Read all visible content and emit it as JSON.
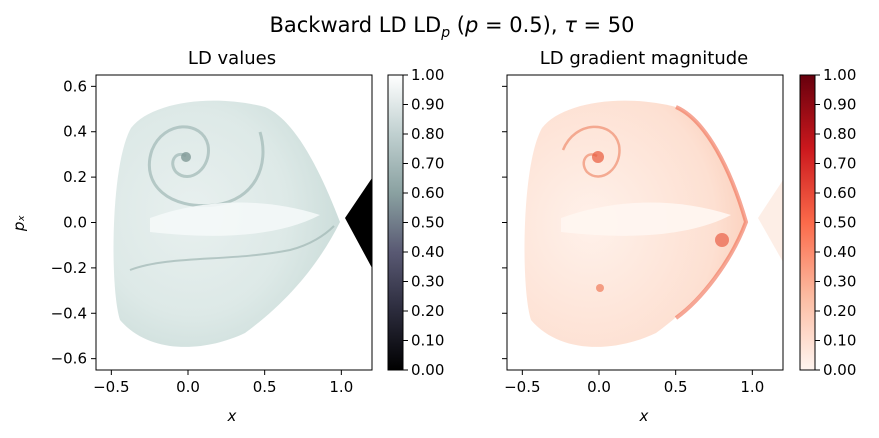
{
  "figure": {
    "suptitle": "Backward LD LDₚ (p = 0.5), τ = 50"
  },
  "chart_data": [
    {
      "type": "heatmap",
      "title": "LD values",
      "xlabel": "x",
      "ylabel": "pₓ",
      "xlim": [
        -0.6,
        1.2
      ],
      "ylim": [
        -0.65,
        0.65
      ],
      "xticks": [
        "−0.5",
        "0.0",
        "0.5",
        "1.0"
      ],
      "xtick_values": [
        -0.5,
        0.0,
        0.5,
        1.0
      ],
      "yticks": [
        "0.6",
        "0.4",
        "0.2",
        "0.0",
        "−0.2",
        "−0.4",
        "−0.6"
      ],
      "ytick_values": [
        0.6,
        0.4,
        0.2,
        0.0,
        -0.2,
        -0.4,
        -0.6
      ],
      "colormap": "bone",
      "colorbar": {
        "range": [
          0.0,
          1.0
        ],
        "ticks": [
          "0.00",
          "0.10",
          "0.20",
          "0.30",
          "0.40",
          "0.50",
          "0.60",
          "0.70",
          "0.80",
          "0.90",
          "1.00"
        ]
      },
      "grid": false
    },
    {
      "type": "heatmap",
      "title": "LD gradient magnitude",
      "xlabel": "x",
      "ylabel": "",
      "xlim": [
        -0.6,
        1.2
      ],
      "ylim": [
        -0.65,
        0.65
      ],
      "xticks": [
        "−0.5",
        "0.0",
        "0.5",
        "1.0"
      ],
      "xtick_values": [
        -0.5,
        0.0,
        0.5,
        1.0
      ],
      "ytick_values": [
        0.6,
        0.4,
        0.2,
        0.0,
        -0.2,
        -0.4,
        -0.6
      ],
      "colormap": "Reds",
      "colorbar": {
        "range": [
          0.0,
          1.0
        ],
        "ticks": [
          "0.00",
          "0.10",
          "0.20",
          "0.30",
          "0.40",
          "0.50",
          "0.60",
          "0.70",
          "0.80",
          "0.90",
          "1.00"
        ]
      },
      "grid": false
    }
  ]
}
